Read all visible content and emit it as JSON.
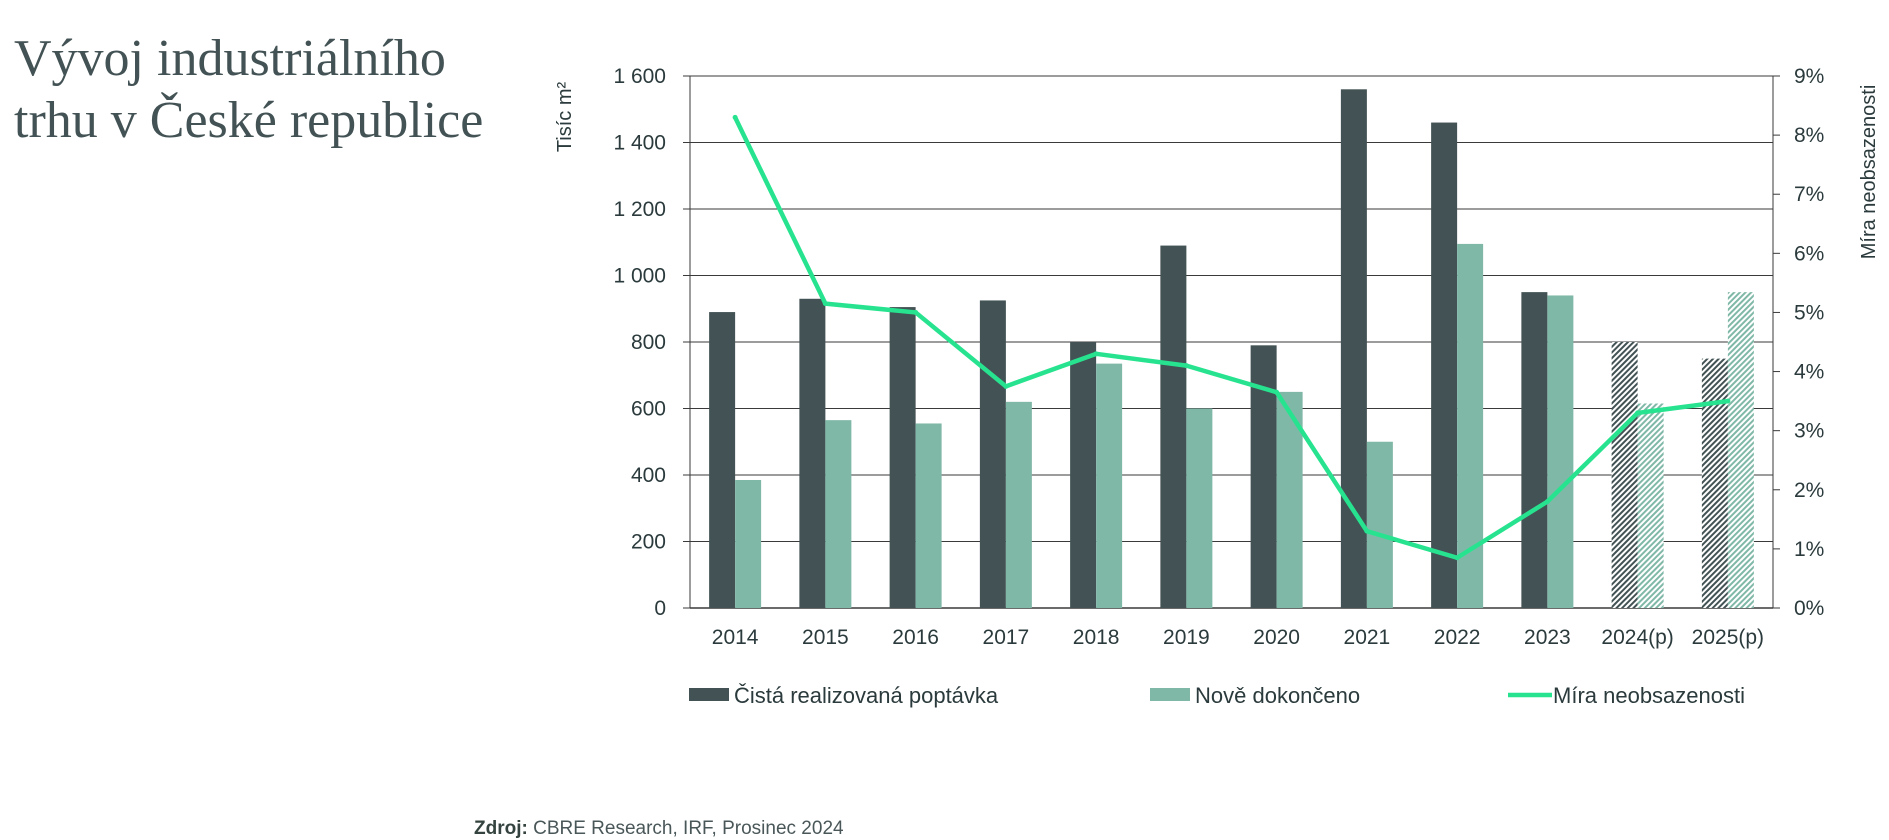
{
  "title_lines": [
    "Vývoj industriálního",
    "trhu v České republice"
  ],
  "source": {
    "label": "Zdroj:",
    "text": "CBRE Research, IRF, Prosinec 2024"
  },
  "colors": {
    "demand": "#435254",
    "completed": "#80b8a8",
    "vacancy": "#27e38f",
    "grid": "#3a3a3a",
    "text": "#2b3a3c"
  },
  "chart_data": {
    "type": "bar",
    "categories": [
      "2014",
      "2015",
      "2016",
      "2017",
      "2018",
      "2019",
      "2020",
      "2021",
      "2022",
      "2023",
      "2024(p)",
      "2025(p)"
    ],
    "projected_categories": [
      "2024(p)",
      "2025(p)"
    ],
    "ylabel": "Tisíc m²",
    "ylim": [
      0,
      1600
    ],
    "yticks": [
      "0",
      "200",
      "400",
      "600",
      "800",
      "1 000",
      "1 200",
      "1 400",
      "1 600"
    ],
    "y2label": "Míra neobsazenosti",
    "y2lim": [
      0,
      9
    ],
    "y2ticks": [
      "0%",
      "1%",
      "2%",
      "3%",
      "4%",
      "5%",
      "6%",
      "7%",
      "8%",
      "9%"
    ],
    "grid": true,
    "legend_position": "bottom",
    "series": [
      {
        "name": "Čistá realizovaná poptávka",
        "type": "bar",
        "values": [
          890,
          930,
          905,
          925,
          800,
          1090,
          790,
          1560,
          1460,
          950,
          800,
          750
        ]
      },
      {
        "name": "Nově dokončeno",
        "type": "bar",
        "values": [
          385,
          565,
          555,
          620,
          735,
          600,
          650,
          500,
          1095,
          940,
          615,
          950
        ]
      },
      {
        "name": "Míra neobsazenosti",
        "type": "line",
        "axis": "right",
        "values": [
          8.3,
          5.15,
          5.0,
          3.75,
          4.3,
          4.1,
          3.65,
          1.3,
          0.85,
          1.8,
          3.3,
          3.5
        ]
      }
    ]
  }
}
